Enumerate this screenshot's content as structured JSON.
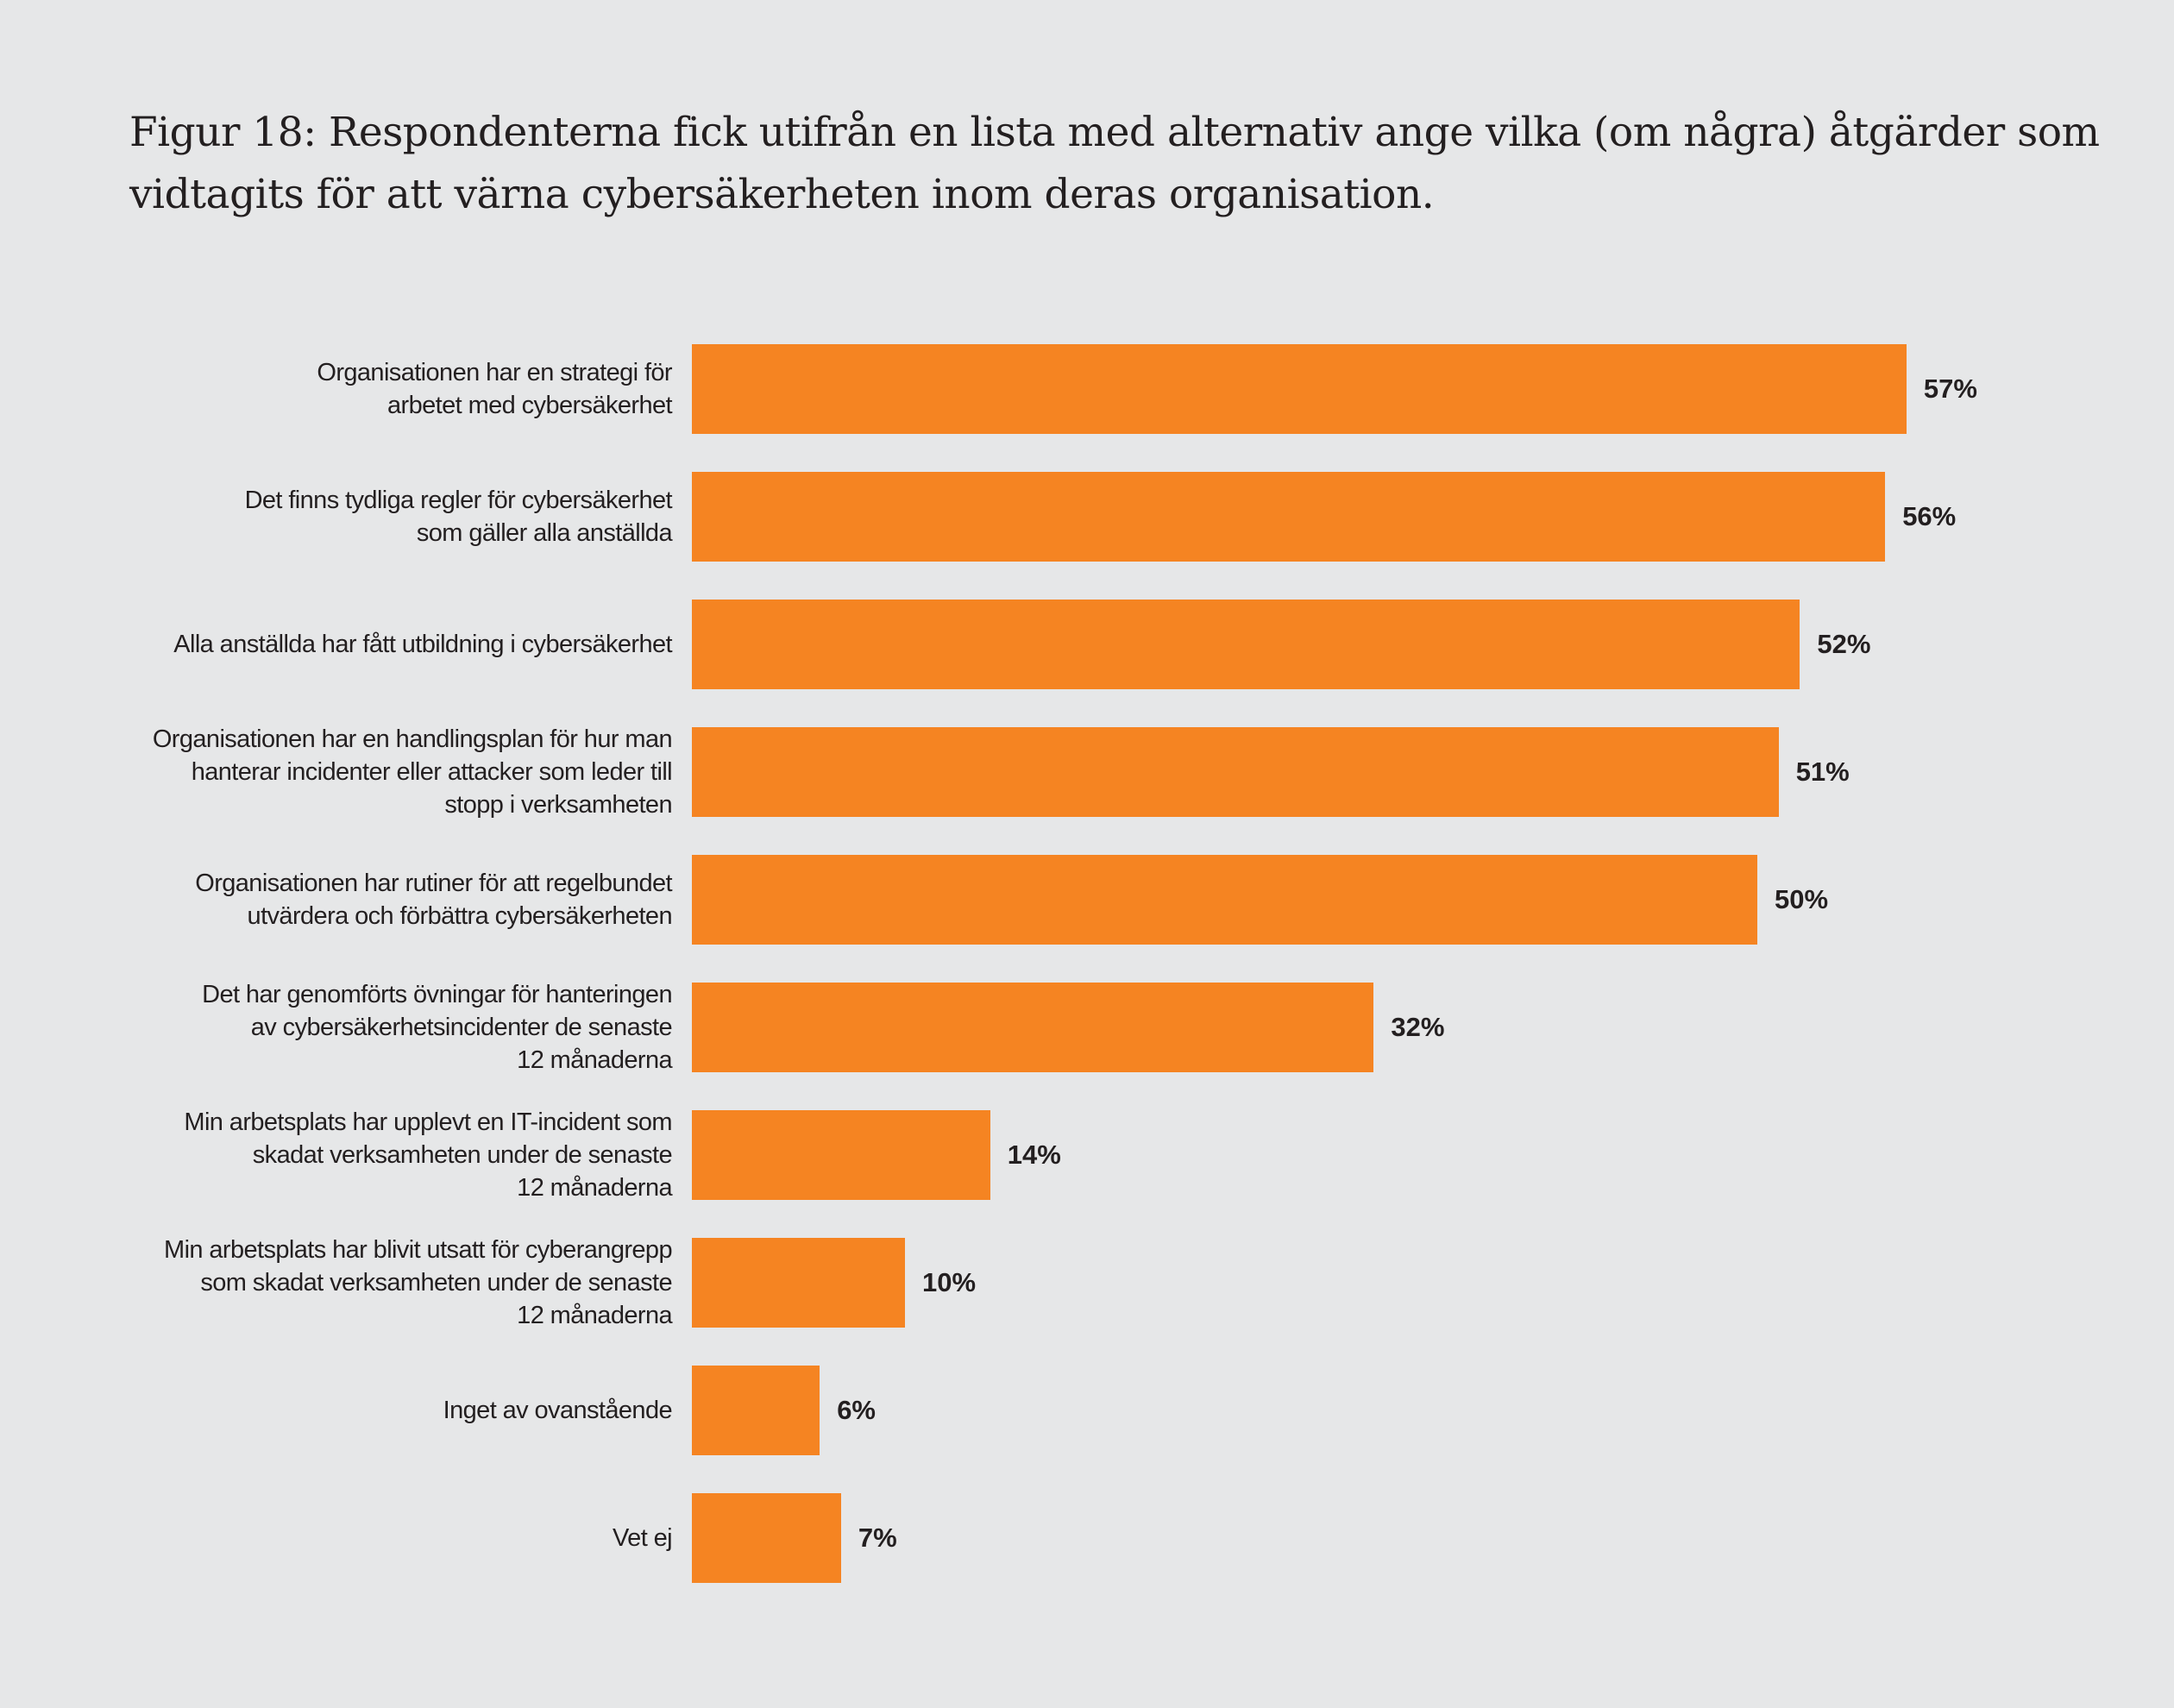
{
  "title": "Figur 18: Respondenterna fick utifrån en lista med alternativ ange vilka (om några) åtgärder som vidtagits för att värna cybersäkerheten inom deras organisation.",
  "colors": {
    "bar": "#F58422",
    "background": "#E6E7E8",
    "text": "#231F20"
  },
  "chart_data": {
    "type": "bar",
    "orientation": "horizontal",
    "title": "Figur 18: Respondenterna fick utifrån en lista med alternativ ange vilka (om några) åtgärder som vidtagits för att värna cybersäkerheten inom deras organisation.",
    "xlabel": "",
    "ylabel": "",
    "xlim": [
      0,
      100
    ],
    "grid": false,
    "unit": "%",
    "categories": [
      "Organisationen har en strategi för\narbetet med cybersäkerhet",
      "Det finns tydliga regler för cybersäkerhet\nsom gäller alla anställda",
      "Alla anställda har fått utbildning i cybersäkerhet",
      "Organisationen har en handlingsplan för hur man\nhanterar incidenter eller attacker som leder till\nstopp i verksamheten",
      "Organisationen har rutiner för att regelbundet\nutvärdera och förbättra cybersäkerheten",
      "Det har genomförts övningar för hanteringen\nav cybersäkerhetsincidenter de senaste\n12 månaderna",
      "Min arbetsplats har upplevt en IT-incident som\nskadat verksamheten under de senaste\n12 månaderna",
      "Min arbetsplats har blivit utsatt för cyberangrepp\nsom skadat verksamheten under de senaste\n12 månaderna",
      "Inget av ovanstående",
      "Vet ej"
    ],
    "values": [
      57,
      56,
      52,
      51,
      50,
      32,
      14,
      10,
      6,
      7
    ],
    "data_labels": [
      "57%",
      "56%",
      "52%",
      "51%",
      "50%",
      "32%",
      "14%",
      "10%",
      "6%",
      "7%"
    ]
  }
}
